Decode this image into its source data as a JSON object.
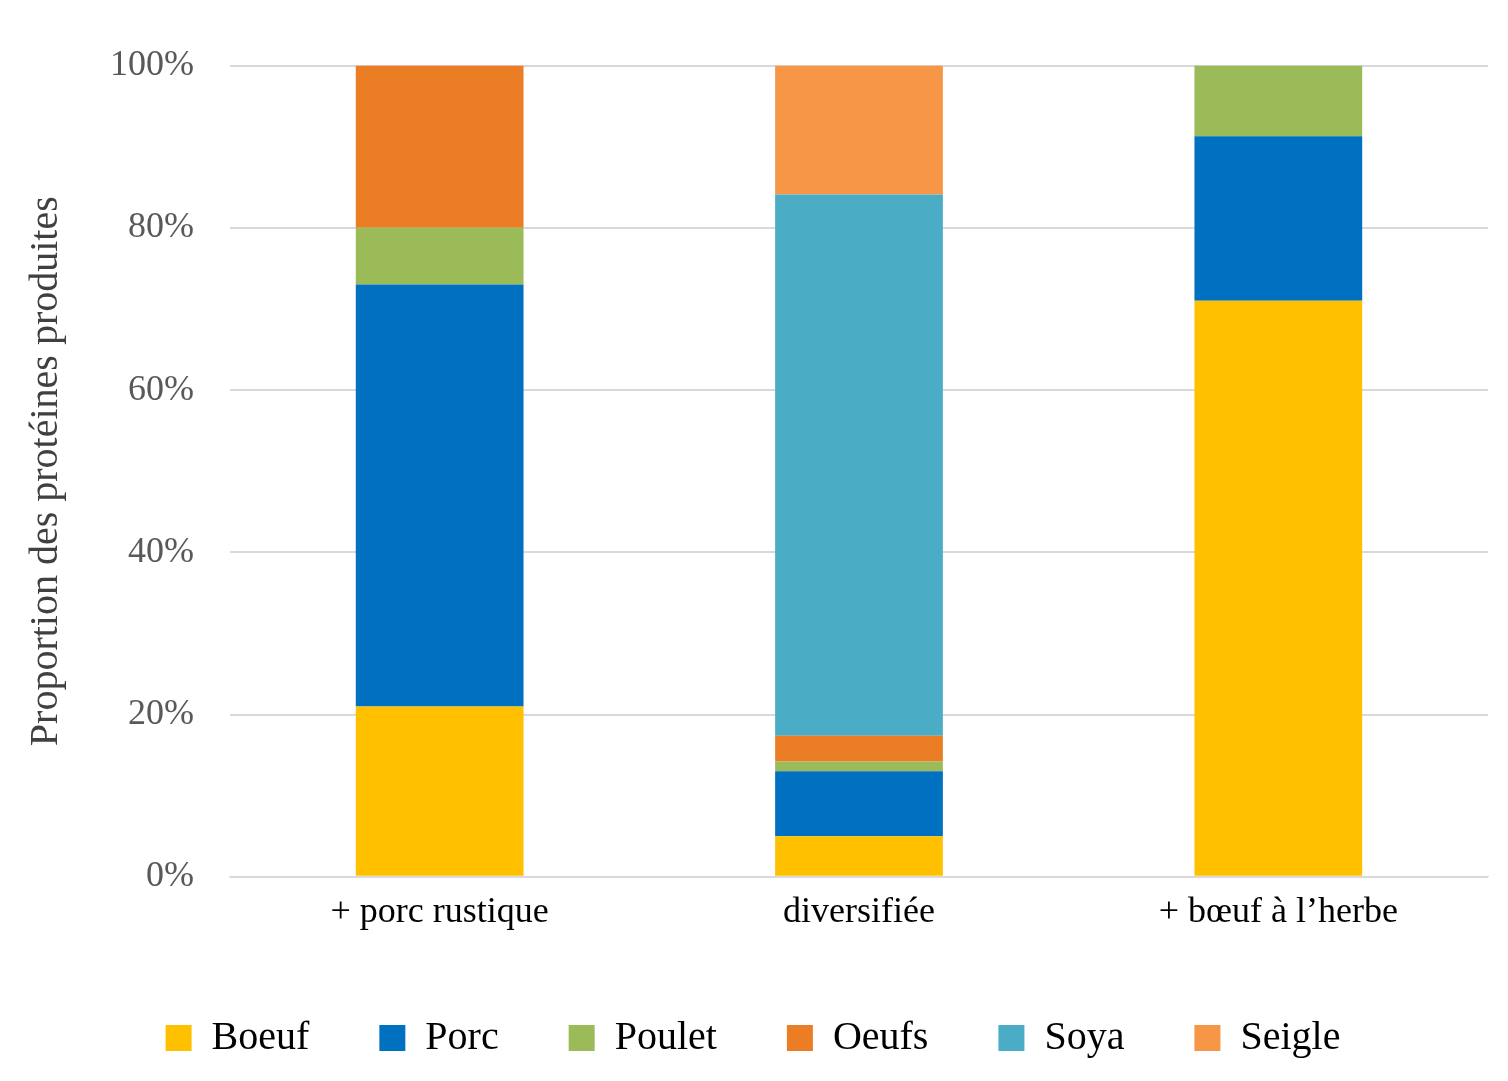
{
  "chart_data": {
    "type": "bar",
    "ylabel": "Proportion des protéines produites",
    "categories": [
      "+ porc rustique",
      "diversifiée",
      "+ bœuf à l’herbe"
    ],
    "stacked": true,
    "ylim": [
      0,
      100
    ],
    "yticks": [
      {
        "value": 0,
        "label": "0%"
      },
      {
        "value": 20,
        "label": "20%"
      },
      {
        "value": 40,
        "label": "40%"
      },
      {
        "value": 60,
        "label": "60%"
      },
      {
        "value": 80,
        "label": "80%"
      },
      {
        "value": 100,
        "label": "100%"
      }
    ],
    "grid": "y",
    "legend": "bottom",
    "series": [
      {
        "name": "Boeuf",
        "color": "#ffc000",
        "values": [
          21,
          5,
          71
        ]
      },
      {
        "name": "Porc",
        "color": "#0070c0",
        "values": [
          52,
          8,
          20.3
        ]
      },
      {
        "name": "Poulet",
        "color": "#9bbb59",
        "values": [
          7,
          1.2,
          8.7
        ]
      },
      {
        "name": "Oeufs",
        "color": "#eb7d24",
        "values": [
          20,
          3.2,
          null
        ]
      },
      {
        "name": "Soya",
        "color": "#4bacc6",
        "values": [
          null,
          66.7,
          null
        ]
      },
      {
        "name": "Seigle",
        "color": "#f79646",
        "values": [
          null,
          15.9,
          null
        ]
      }
    ]
  }
}
